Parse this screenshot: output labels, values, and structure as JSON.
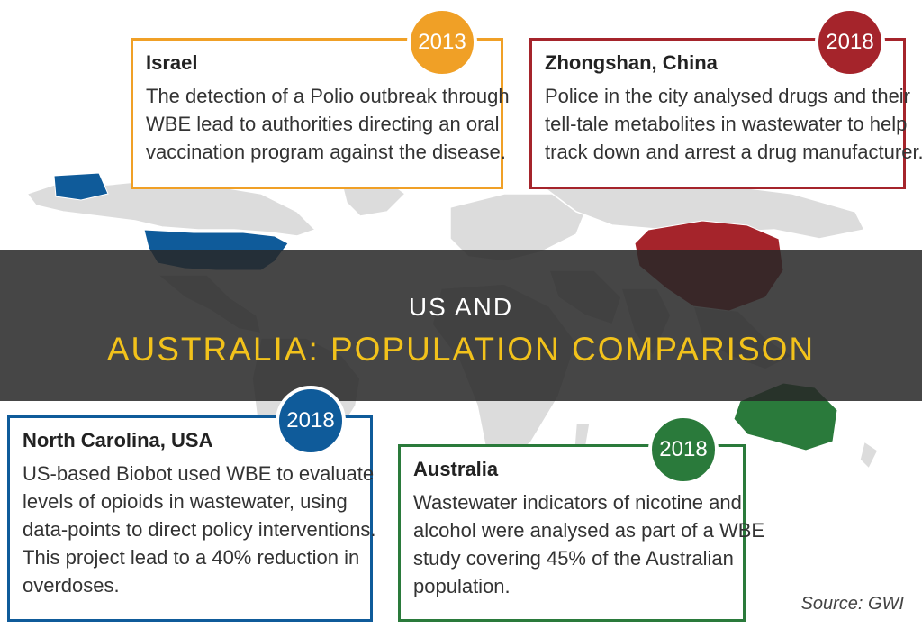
{
  "colors": {
    "israel": "#f0a026",
    "china": "#a5242b",
    "usa": "#0f5b9a",
    "australia": "#2a7a3b",
    "banner_bg": "#2b2b2b",
    "banner_highlight": "#f2c21b"
  },
  "banner": {
    "line1": "US AND",
    "line2": "AUSTRALIA: POPULATION COMPARISON"
  },
  "cards": {
    "israel": {
      "year": "2013",
      "title": "Israel",
      "lines": [
        "The detection of a Polio outbreak through",
        "WBE lead to authorities directing an oral",
        "vaccination program against the disease."
      ]
    },
    "china": {
      "year": "2018",
      "title": "Zhongshan, China",
      "lines": [
        "Police in the city analysed drugs and their",
        "tell-tale metabolites in wastewater to help",
        "track down and arrest a drug manufacturer."
      ]
    },
    "north_carolina": {
      "year": "2018",
      "title": "North Carolina, USA",
      "lines": [
        "US-based Biobot used WBE to evaluate",
        "levels of opioids in wastewater, using",
        "data-points to direct policy interventions.",
        "This project lead to a 40% reduction in",
        "overdoses."
      ]
    },
    "australia": {
      "year": "2018",
      "title": "Australia",
      "lines": [
        "Wastewater indicators of nicotine and",
        "alcohol were analysed as part of a WBE",
        "study covering 45% of the Australian",
        "population."
      ]
    }
  },
  "source": "Source: GWI"
}
